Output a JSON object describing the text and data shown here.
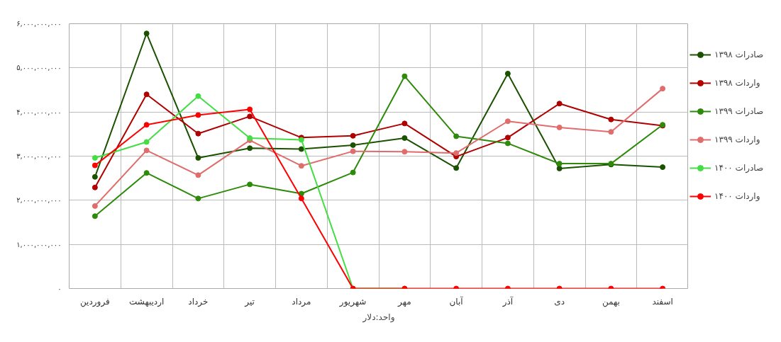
{
  "chart_data": {
    "type": "line",
    "xlabel": "واحد:دلار",
    "categories": [
      "فروردین",
      "اردیبهشت",
      "خرداد",
      "تیر",
      "مرداد",
      "شهریور",
      "مهر",
      "آبان",
      "آذر",
      "دی",
      "بهمن",
      "اسفند"
    ],
    "series": [
      {
        "name": "صادرات ۱۳۹۸",
        "color": "#1a5200",
        "values": [
          2530000000,
          5780000000,
          2960000000,
          3180000000,
          3160000000,
          3250000000,
          3410000000,
          2730000000,
          4870000000,
          2720000000,
          2810000000,
          2750000000
        ]
      },
      {
        "name": "واردات ۱۳۹۸",
        "color": "#b00000",
        "values": [
          2290000000,
          4400000000,
          3510000000,
          3900000000,
          3420000000,
          3460000000,
          3740000000,
          2990000000,
          3420000000,
          4190000000,
          3830000000,
          3690000000
        ]
      },
      {
        "name": "صادرات ۱۳۹۹",
        "color": "#2e8a0a",
        "values": [
          1640000000,
          2620000000,
          2040000000,
          2360000000,
          2150000000,
          2630000000,
          4810000000,
          3450000000,
          3290000000,
          2830000000,
          2830000000,
          3710000000
        ]
      },
      {
        "name": "واردات ۱۳۹۹",
        "color": "#e06c6c",
        "values": [
          1870000000,
          3130000000,
          2570000000,
          3360000000,
          2780000000,
          3110000000,
          3100000000,
          3070000000,
          3790000000,
          3650000000,
          3550000000,
          4530000000
        ]
      },
      {
        "name": "صادرات ۱۴۰۰",
        "color": "#44dd44",
        "values": [
          2960000000,
          3320000000,
          4360000000,
          3410000000,
          3370000000,
          0,
          0,
          null,
          null,
          null,
          null,
          null
        ]
      },
      {
        "name": "واردات ۱۴۰۰",
        "color": "#ff0000",
        "values": [
          2790000000,
          3710000000,
          3930000000,
          4060000000,
          2040000000,
          0,
          0,
          0,
          0,
          0,
          0,
          0
        ]
      }
    ],
    "ylim": [
      0,
      6000000000
    ],
    "yticks": [
      {
        "value": 0,
        "label": "۰"
      },
      {
        "value": 1000000000,
        "label": "۱,۰۰۰,۰۰۰,۰۰۰"
      },
      {
        "value": 2000000000,
        "label": "۲,۰۰۰,۰۰۰,۰۰۰"
      },
      {
        "value": 3000000000,
        "label": "۳,۰۰۰,۰۰۰,۰۰۰"
      },
      {
        "value": 4000000000,
        "label": "۴,۰۰۰,۰۰۰,۰۰۰"
      },
      {
        "value": 5000000000,
        "label": "۵,۰۰۰,۰۰۰,۰۰۰"
      },
      {
        "value": 6000000000,
        "label": "۶,۰۰۰,۰۰۰,۰۰۰"
      }
    ],
    "grid": true,
    "legend": "right",
    "marker": "circle",
    "line_style": "solid"
  }
}
